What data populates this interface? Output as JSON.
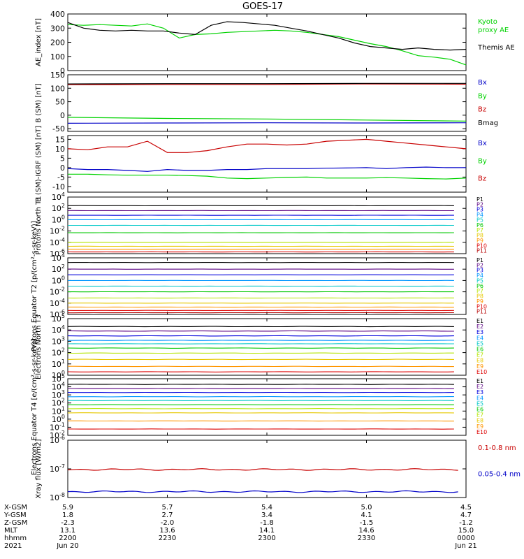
{
  "title": "GOES-17",
  "colors": {
    "black": "#000000",
    "green": "#00d200",
    "blue": "#0000c8",
    "red": "#c80000",
    "P": [
      "#000000",
      "#5a0082",
      "#0000dc",
      "#0096ff",
      "#00c8c8",
      "#00c800",
      "#b4e600",
      "#e6c800",
      "#ff9600",
      "#dc0000",
      "#b40000"
    ],
    "E": [
      "#000000",
      "#5a0082",
      "#0000dc",
      "#0096ff",
      "#00c8c8",
      "#00c800",
      "#b4e600",
      "#e6c800",
      "#ff9600",
      "#dc0000",
      "#b40000"
    ]
  },
  "chart_data": [
    {
      "type": "line",
      "ylabel": "AE_index [nT]",
      "ylim": [
        0,
        400
      ],
      "yticks": [
        0,
        100,
        200,
        300,
        400
      ],
      "series": [
        {
          "name": "Kyoto proxy AE",
          "color": "green",
          "x": [
            0,
            4,
            8,
            12,
            16,
            20,
            24,
            28,
            32,
            36,
            40,
            44,
            48,
            52,
            56,
            60,
            64,
            68,
            72,
            76,
            80,
            84,
            88,
            92,
            96,
            100
          ],
          "y": [
            325,
            320,
            325,
            320,
            315,
            330,
            300,
            230,
            255,
            260,
            270,
            275,
            280,
            285,
            280,
            270,
            255,
            240,
            215,
            190,
            170,
            140,
            105,
            95,
            80,
            40
          ]
        },
        {
          "name": "Themis AE",
          "color": "black",
          "x": [
            0,
            4,
            8,
            12,
            16,
            20,
            24,
            28,
            32,
            36,
            40,
            44,
            48,
            52,
            56,
            60,
            64,
            68,
            72,
            76,
            80,
            84,
            88,
            92,
            96,
            100
          ],
          "y": [
            340,
            300,
            285,
            280,
            285,
            280,
            280,
            265,
            255,
            320,
            345,
            340,
            330,
            320,
            300,
            280,
            255,
            230,
            195,
            170,
            160,
            150,
            160,
            150,
            145,
            150
          ]
        }
      ],
      "legend": [
        "Kyoto proxy AE",
        "Themis AE"
      ]
    },
    {
      "type": "line",
      "ylabel": "B (SM) [nT]",
      "ylim": [
        -60,
        150
      ],
      "yticks": [
        -50,
        0,
        50,
        100,
        150
      ],
      "series": [
        {
          "name": "Bx",
          "color": "blue",
          "x": [
            0,
            25,
            50,
            75,
            100
          ],
          "y": [
            -30,
            -29,
            -28,
            -29,
            -28
          ]
        },
        {
          "name": "By",
          "color": "green",
          "x": [
            0,
            25,
            50,
            75,
            100
          ],
          "y": [
            -8,
            -12,
            -14,
            -18,
            -22
          ]
        },
        {
          "name": "Bz",
          "color": "red",
          "x": [
            0,
            25,
            50,
            75,
            100
          ],
          "y": [
            113,
            114,
            114,
            116,
            115
          ]
        },
        {
          "name": "Bmag",
          "color": "black",
          "x": [
            0,
            25,
            50,
            75,
            100
          ],
          "y": [
            116,
            117,
            117,
            118,
            118
          ]
        }
      ],
      "legend": [
        "Bx",
        "By",
        "Bz",
        "Bmag"
      ]
    },
    {
      "type": "line",
      "ylabel": "B (SM)-IGRF (SM) [nT]",
      "ylim": [
        -13,
        17
      ],
      "yticks": [
        -10,
        -5,
        0,
        5,
        10,
        15
      ],
      "series": [
        {
          "name": "Bx",
          "color": "blue",
          "x": [
            0,
            5,
            10,
            15,
            20,
            25,
            30,
            35,
            40,
            45,
            50,
            55,
            60,
            65,
            70,
            75,
            80,
            85,
            90,
            95,
            100
          ],
          "y": [
            -0.5,
            -1,
            -1,
            -1.5,
            -2,
            -1,
            -1.5,
            -1.5,
            -1,
            -1,
            -0.5,
            -0.5,
            -0.5,
            -0.3,
            -0.2,
            0,
            -0.5,
            0,
            0.3,
            0,
            0
          ]
        },
        {
          "name": "By",
          "color": "green",
          "x": [
            0,
            5,
            10,
            15,
            20,
            25,
            30,
            35,
            40,
            45,
            50,
            55,
            60,
            65,
            70,
            75,
            80,
            85,
            90,
            95,
            100
          ],
          "y": [
            -3.5,
            -3.5,
            -3.8,
            -4,
            -4,
            -4,
            -4.2,
            -4.5,
            -5.5,
            -5.8,
            -5.5,
            -5.2,
            -5,
            -5.5,
            -5.5,
            -5.5,
            -5.3,
            -5.5,
            -5.8,
            -6,
            -5.5
          ]
        },
        {
          "name": "Bz",
          "color": "red",
          "x": [
            0,
            5,
            10,
            15,
            20,
            25,
            30,
            35,
            40,
            45,
            50,
            55,
            60,
            65,
            70,
            75,
            80,
            85,
            90,
            95,
            100
          ],
          "y": [
            10,
            9.5,
            11,
            11,
            14,
            8,
            8,
            9,
            11,
            12.5,
            12.5,
            12,
            12.5,
            14,
            14.5,
            15,
            14,
            13,
            12,
            11,
            10
          ]
        }
      ],
      "legend": [
        "Bx",
        "By",
        "Bz"
      ]
    },
    {
      "type": "line",
      "ylabel": "Protons North T1",
      "scale": "log",
      "ylim": [
        1e-06,
        10000
      ],
      "yticks": [
        "10^4",
        "10^2",
        "10^0",
        "10^-2",
        "10^-4",
        "10^-6"
      ],
      "series_names": [
        "P1",
        "P2",
        "P3",
        "P4",
        "P5",
        "P6",
        "P7",
        "P8",
        "P9",
        "P10",
        "P11"
      ],
      "levels": [
        300,
        40,
        6,
        1,
        0.1,
        0.005,
        0.0001,
        2e-05,
        6e-06,
        2e-06,
        1e-06
      ]
    },
    {
      "type": "line",
      "ylabel": "Protons Equator T2 [p/(cm²-s-sr-keV)]",
      "scale": "log",
      "ylim": [
        1e-06,
        10000
      ],
      "yticks": [
        "10^4",
        "10^2",
        "10^0",
        "10^-2",
        "10^-4",
        "10^-6"
      ],
      "series_names": [
        "P1",
        "P2",
        "P3",
        "P4",
        "P5",
        "P6",
        "P7",
        "P8",
        "P9",
        "P10",
        "P11"
      ],
      "levels": [
        1500,
        100,
        10,
        1,
        0.1,
        0.01,
        0.0008,
        0.0001,
        2e-05,
        5e-06,
        2e-06
      ]
    },
    {
      "type": "line",
      "ylabel": "Electrons North T3",
      "scale": "log",
      "ylim": [
        1,
        100000
      ],
      "yticks": [
        "10^5",
        "10^4",
        "10^3",
        "10^2",
        "10^1",
        "10^0"
      ],
      "series_names": [
        "E1",
        "E2",
        "E3",
        "E4",
        "E5",
        "E6",
        "E7",
        "E8",
        "E9",
        "E10"
      ],
      "levels": [
        20000,
        8000,
        3000,
        1200,
        600,
        250,
        90,
        25,
        6,
        2
      ]
    },
    {
      "type": "line",
      "ylabel": "Electrons Equator T4 [e/(cm²-s-sr-keV)]",
      "scale": "log",
      "ylim": [
        0.01,
        100000
      ],
      "yticks": [
        "10^5",
        "10^4",
        "10^3",
        "10^2",
        "10^1",
        "10^0",
        "10^-1",
        "10^-2"
      ],
      "series_names": [
        "E1",
        "E2",
        "E3",
        "E4",
        "E5",
        "E6",
        "E7",
        "E8",
        "E9",
        "E10"
      ],
      "levels": [
        20000,
        6000,
        2000,
        600,
        200,
        60,
        20,
        6,
        0.6,
        0.06
      ]
    },
    {
      "type": "line",
      "ylabel": "Xray flux [W/m2]",
      "scale": "log",
      "ylim": [
        1e-08,
        1e-06
      ],
      "yticks": [
        "10^-6",
        "10^-7",
        "10^-8"
      ],
      "series": [
        {
          "name": "0.1-0.8 nm",
          "color": "red",
          "level": 9.5e-08
        },
        {
          "name": "0.05-0.4 nm",
          "color": "blue",
          "level": 1.6e-08
        }
      ],
      "legend": [
        "0.1-0.8 nm",
        "0.05-0.4 nm"
      ]
    }
  ],
  "xaxis": {
    "row_labels": [
      "X-GSM",
      "Y-GSM",
      "Z-GSM",
      "MLT",
      "hhmm",
      "2021"
    ],
    "columns": [
      [
        "5.9",
        "1.8",
        "-2.3",
        "13.1",
        "2200",
        "Jun 20"
      ],
      [
        "5.7",
        "2.7",
        "-2.0",
        "13.6",
        "2230",
        ""
      ],
      [
        "5.4",
        "3.4",
        "-1.8",
        "14.1",
        "2300",
        ""
      ],
      [
        "5.0",
        "4.1",
        "-1.5",
        "14.6",
        "2330",
        ""
      ],
      [
        "4.5",
        "4.7",
        "-1.2",
        "15.0",
        "0000",
        "Jun 21"
      ]
    ]
  }
}
